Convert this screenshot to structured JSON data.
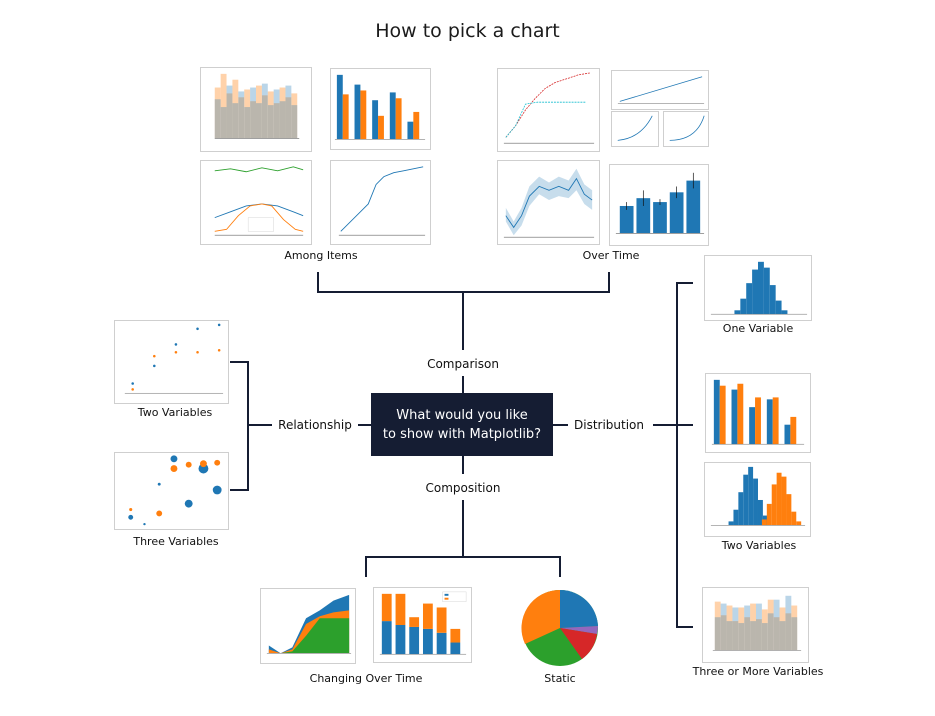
{
  "title": "How to pick a chart",
  "center": {
    "line1": "What would you like",
    "line2": "to show with Matplotlib?"
  },
  "branches": {
    "comparison": "Comparison",
    "relationship": "Relationship",
    "distribution": "Distribution",
    "composition": "Composition"
  },
  "leaves": {
    "among_items": "Among Items",
    "over_time": "Over Time",
    "two_variables_rel": "Two Variables",
    "three_variables": "Three Variables",
    "one_variable": "One Variable",
    "two_variables_dist": "Two Variables",
    "three_or_more": "Three or More Variables",
    "changing_over_time": "Changing Over Time",
    "static": "Static"
  },
  "colors": {
    "center_box": "#151d33",
    "blue": "#1f77b4",
    "orange": "#ff7f0e",
    "green": "#2ca02c",
    "red": "#d62728",
    "purple": "#9467bd",
    "line": "#151d33"
  }
}
